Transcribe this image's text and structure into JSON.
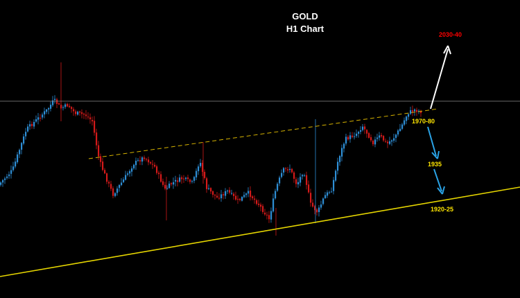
{
  "chart_data": {
    "type": "candlestick",
    "title": "GOLD",
    "subtitle": "H1 Chart",
    "colors": {
      "background": "#000000",
      "bull": "#2e8fd6",
      "bear": "#d41a1a",
      "support_line": "#e6d600",
      "channel_line": "#d8b400",
      "horizontal_line": "#8a8a8a",
      "target_up": "#ff0000",
      "level_label": "#ffe600",
      "arrow_up": "#ffffff",
      "arrow_down": "#2aa3e6"
    },
    "annotations": {
      "target_up": "2030-40",
      "level_1": "1970-80",
      "level_2": "1935",
      "level_3": "1920-25"
    },
    "price_path": [
      [
        0,
        0.27
      ],
      [
        20,
        0.36
      ],
      [
        40,
        0.61
      ],
      [
        60,
        0.69
      ],
      [
        70,
        0.73
      ],
      [
        80,
        0.79
      ],
      [
        90,
        0.74
      ],
      [
        100,
        0.76
      ],
      [
        110,
        0.71
      ],
      [
        125,
        0.7
      ],
      [
        135,
        0.66
      ],
      [
        145,
        0.42
      ],
      [
        155,
        0.31
      ],
      [
        165,
        0.21
      ],
      [
        180,
        0.3
      ],
      [
        195,
        0.4
      ],
      [
        210,
        0.44
      ],
      [
        225,
        0.38
      ],
      [
        240,
        0.24
      ],
      [
        250,
        0.28
      ],
      [
        265,
        0.31
      ],
      [
        280,
        0.28
      ],
      [
        290,
        0.42
      ],
      [
        300,
        0.25
      ],
      [
        315,
        0.19
      ],
      [
        330,
        0.23
      ],
      [
        345,
        0.17
      ],
      [
        360,
        0.22
      ],
      [
        375,
        0.15
      ],
      [
        390,
        0.06
      ],
      [
        400,
        0.25
      ],
      [
        410,
        0.36
      ],
      [
        420,
        0.37
      ],
      [
        430,
        0.27
      ],
      [
        440,
        0.36
      ],
      [
        450,
        0.15
      ],
      [
        460,
        0.1
      ],
      [
        470,
        0.2
      ],
      [
        480,
        0.24
      ],
      [
        490,
        0.43
      ],
      [
        500,
        0.55
      ],
      [
        515,
        0.58
      ],
      [
        525,
        0.63
      ],
      [
        540,
        0.53
      ],
      [
        550,
        0.57
      ],
      [
        560,
        0.52
      ],
      [
        570,
        0.56
      ],
      [
        580,
        0.62
      ],
      [
        590,
        0.71
      ],
      [
        600,
        0.73
      ],
      [
        608,
        0.72
      ]
    ]
  }
}
